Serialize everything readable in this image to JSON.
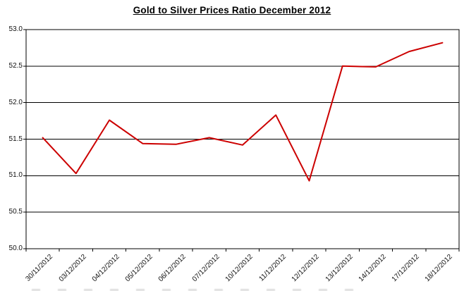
{
  "page": {
    "background_color": "#ffffff"
  },
  "chart_data": {
    "type": "line",
    "title": "Gold to Silver Prices Ratio December 2012",
    "categories": [
      "30/11/2012",
      "03/12/2012",
      "04/12/2012",
      "05/12/2012",
      "06/12/2012",
      "07/12/2012",
      "10/12/2012",
      "11/12/2012",
      "12/12/2012",
      "13/12/2012",
      "14/12/2012",
      "17/12/2012",
      "18/12/2012"
    ],
    "values": [
      51.52,
      51.03,
      51.76,
      51.44,
      51.43,
      51.52,
      51.42,
      51.83,
      50.93,
      52.5,
      52.49,
      52.7,
      52.82
    ],
    "xlabel": "",
    "ylabel": "",
    "ylim": [
      50.0,
      53.0
    ],
    "ytick_step": 0.5,
    "y_tick_labels": [
      "53.0",
      "52.5",
      "52.0",
      "51.5",
      "51.0",
      "50.5",
      "50.0"
    ],
    "grid": true,
    "legend": "none",
    "line_color": "#cc0000",
    "axis_color": "#000000",
    "line_width": 2
  }
}
